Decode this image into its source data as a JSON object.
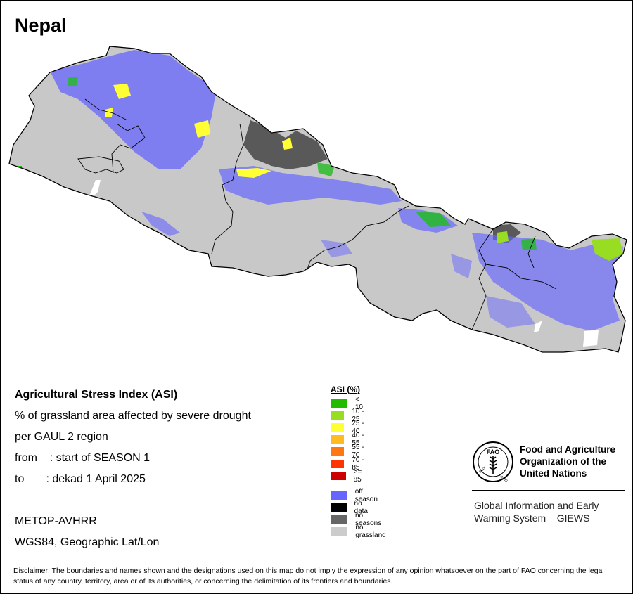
{
  "map": {
    "country": "Nepal",
    "colors": {
      "no_grassland": "#c8c8c8",
      "off_season": "#6666ff",
      "no_seasons": "#595959",
      "asi_lt10": "#22bb22",
      "asi_10_25": "#99dd22",
      "asi_25_40": "#ffff33",
      "border": "#000000"
    }
  },
  "info": {
    "title": "Agricultural Stress Index (ASI)",
    "line1": "% of grassland area affected by severe drought",
    "line2": "per GAUL 2 region",
    "from": "from    : start of SEASON 1",
    "to": "to       : dekad 1 April 2025",
    "sensor": "METOP-AVHRR",
    "projection": "WGS84, Geographic Lat/Lon"
  },
  "legend": {
    "title": "ASI (%)",
    "classes": [
      {
        "label": "< 10",
        "color": "#22bb00"
      },
      {
        "label": "10 - 25",
        "color": "#99dd22"
      },
      {
        "label": "25 - 40",
        "color": "#ffff33"
      },
      {
        "label": "40 - 55",
        "color": "#ffbb22"
      },
      {
        "label": "55 - 70",
        "color": "#ff7711"
      },
      {
        "label": "70 - 85",
        "color": "#ff3300"
      },
      {
        "label": ">= 85",
        "color": "#cc0000"
      }
    ],
    "other": [
      {
        "label": "off season",
        "color": "#6666ff"
      },
      {
        "label": "no data",
        "color": "#000000"
      },
      {
        "label": "no seasons",
        "color": "#666666"
      },
      {
        "label": "no grassland",
        "color": "#cccccc"
      }
    ]
  },
  "org": {
    "name_line1": "Food and Agriculture",
    "name_line2": "Organization of the",
    "name_line3": "United Nations",
    "giews_line1": "Global Information and Early",
    "giews_line2": "Warning System – GIEWS",
    "logo_text_left": "FIAT",
    "logo_text_right": "PANIS",
    "logo_letters": "FAO"
  },
  "disclaimer": "Disclaimer: The boundaries and names shown and the designations used on this map do not imply the expression of any opinion whatsoever on the part of FAO concerning the legal status of any country, territory, area or of its authorities, or concerning the delimitation of its frontiers and boundaries."
}
